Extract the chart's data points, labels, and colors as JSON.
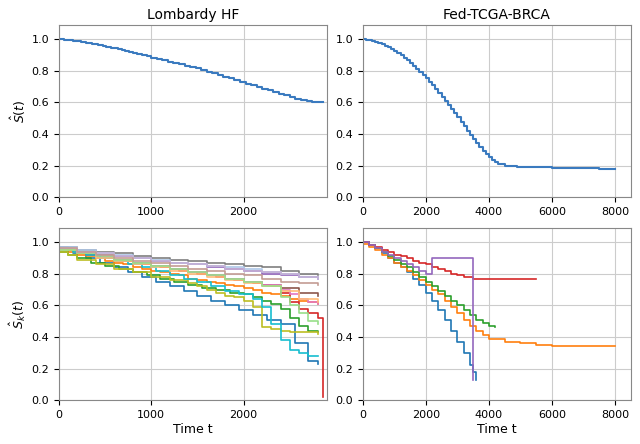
{
  "title_left": "Lombardy HF",
  "title_right": "Fed-TCGA-BRCA",
  "xlabel": "Time t",
  "ylabel_top": "$\\hat{S}(t)$",
  "ylabel_bottom": "$\\hat{S}_k(t)$",
  "background_color": "#ffffff",
  "grid_color": "#cccccc",
  "main_color": "#3a7abf",
  "hf_global": {
    "t": [
      0,
      30,
      60,
      90,
      120,
      150,
      180,
      210,
      240,
      270,
      300,
      330,
      360,
      390,
      420,
      450,
      480,
      510,
      540,
      570,
      600,
      640,
      680,
      720,
      760,
      800,
      850,
      900,
      950,
      1000,
      1060,
      1120,
      1180,
      1240,
      1300,
      1360,
      1420,
      1480,
      1540,
      1600,
      1660,
      1720,
      1780,
      1840,
      1900,
      1960,
      2020,
      2080,
      2140,
      2200,
      2260,
      2320,
      2380,
      2440,
      2500,
      2560,
      2620,
      2680,
      2740,
      2800,
      2860
    ],
    "s": [
      1.0,
      0.998,
      0.996,
      0.994,
      0.992,
      0.99,
      0.987,
      0.985,
      0.982,
      0.979,
      0.976,
      0.973,
      0.97,
      0.967,
      0.964,
      0.961,
      0.957,
      0.953,
      0.949,
      0.945,
      0.941,
      0.936,
      0.93,
      0.924,
      0.918,
      0.912,
      0.905,
      0.898,
      0.891,
      0.883,
      0.875,
      0.867,
      0.858,
      0.85,
      0.841,
      0.832,
      0.823,
      0.814,
      0.804,
      0.794,
      0.784,
      0.774,
      0.763,
      0.752,
      0.741,
      0.73,
      0.719,
      0.708,
      0.697,
      0.686,
      0.675,
      0.664,
      0.654,
      0.644,
      0.634,
      0.624,
      0.616,
      0.609,
      0.604,
      0.601,
      0.6
    ]
  },
  "brca_global": {
    "t": [
      0,
      100,
      200,
      300,
      400,
      500,
      600,
      700,
      800,
      900,
      1000,
      1100,
      1200,
      1300,
      1400,
      1500,
      1600,
      1700,
      1800,
      1900,
      2000,
      2100,
      2200,
      2300,
      2400,
      2500,
      2600,
      2700,
      2800,
      2900,
      3000,
      3100,
      3200,
      3300,
      3400,
      3500,
      3600,
      3700,
      3800,
      3900,
      4000,
      4100,
      4200,
      4300,
      4500,
      4700,
      4900,
      5200,
      5500,
      6000,
      6500,
      7000,
      7500,
      8000
    ],
    "s": [
      1.0,
      0.997,
      0.993,
      0.988,
      0.982,
      0.975,
      0.967,
      0.958,
      0.948,
      0.937,
      0.925,
      0.912,
      0.898,
      0.882,
      0.866,
      0.849,
      0.831,
      0.813,
      0.793,
      0.773,
      0.752,
      0.73,
      0.707,
      0.684,
      0.66,
      0.635,
      0.61,
      0.584,
      0.558,
      0.531,
      0.504,
      0.476,
      0.449,
      0.421,
      0.394,
      0.368,
      0.342,
      0.318,
      0.295,
      0.274,
      0.255,
      0.238,
      0.223,
      0.21,
      0.2,
      0.195,
      0.192,
      0.19,
      0.188,
      0.185,
      0.183,
      0.182,
      0.181,
      0.18
    ]
  },
  "hf_clients": [
    {
      "color": "#1f77b4",
      "t": [
        0,
        150,
        300,
        450,
        600,
        750,
        900,
        1050,
        1200,
        1350,
        1500,
        1650,
        1800,
        1950,
        2100,
        2250,
        2400,
        2550,
        2700,
        2800
      ],
      "s": [
        0.96,
        0.93,
        0.9,
        0.87,
        0.84,
        0.81,
        0.78,
        0.75,
        0.72,
        0.69,
        0.66,
        0.63,
        0.6,
        0.57,
        0.54,
        0.51,
        0.48,
        0.36,
        0.25,
        0.23
      ]
    },
    {
      "color": "#ff7f0e",
      "t": [
        0,
        100,
        200,
        300,
        400,
        500,
        600,
        700,
        800,
        900,
        1000,
        1100,
        1200,
        1300,
        1400,
        1500,
        1600,
        1700,
        1800,
        1900,
        2000,
        2100,
        2200,
        2300,
        2400,
        2500,
        2600,
        2700,
        2800
      ],
      "s": [
        0.96,
        0.94,
        0.92,
        0.91,
        0.9,
        0.88,
        0.87,
        0.86,
        0.84,
        0.83,
        0.82,
        0.81,
        0.8,
        0.79,
        0.77,
        0.76,
        0.75,
        0.74,
        0.73,
        0.72,
        0.71,
        0.7,
        0.68,
        0.67,
        0.66,
        0.64,
        0.63,
        0.62,
        0.61
      ]
    },
    {
      "color": "#2ca02c",
      "t": [
        0,
        100,
        200,
        350,
        500,
        650,
        800,
        950,
        1100,
        1250,
        1400,
        1550,
        1700,
        1850,
        2000,
        2100,
        2200,
        2300,
        2400,
        2500,
        2600,
        2700,
        2800
      ],
      "s": [
        0.94,
        0.92,
        0.9,
        0.87,
        0.85,
        0.83,
        0.81,
        0.79,
        0.77,
        0.75,
        0.73,
        0.71,
        0.7,
        0.68,
        0.67,
        0.65,
        0.63,
        0.61,
        0.58,
        0.52,
        0.47,
        0.44,
        0.43
      ]
    },
    {
      "color": "#d62728",
      "t": [
        0,
        100,
        200,
        300,
        400,
        500,
        600,
        700,
        800,
        900,
        1000,
        1100,
        1200,
        1300,
        1400,
        1500,
        1600,
        1700,
        1800,
        1900,
        2000,
        2100,
        2200,
        2300,
        2400,
        2500,
        2600,
        2700,
        2800,
        2860
      ],
      "s": [
        0.97,
        0.95,
        0.93,
        0.92,
        0.91,
        0.9,
        0.89,
        0.88,
        0.87,
        0.86,
        0.85,
        0.84,
        0.83,
        0.82,
        0.81,
        0.8,
        0.79,
        0.78,
        0.77,
        0.76,
        0.75,
        0.74,
        0.73,
        0.72,
        0.68,
        0.62,
        0.58,
        0.55,
        0.52,
        0.02
      ]
    },
    {
      "color": "#9467bd",
      "t": [
        0,
        200,
        400,
        600,
        800,
        1000,
        1200,
        1400,
        1600,
        1800,
        2000,
        2200,
        2400,
        2600,
        2800
      ],
      "s": [
        0.96,
        0.94,
        0.92,
        0.91,
        0.9,
        0.88,
        0.87,
        0.86,
        0.84,
        0.83,
        0.82,
        0.8,
        0.79,
        0.78,
        0.77
      ]
    },
    {
      "color": "#8c564b",
      "t": [
        0,
        200,
        400,
        600,
        800,
        1000,
        1200,
        1400,
        1600,
        1800,
        2000,
        2200,
        2400,
        2600,
        2800
      ],
      "s": [
        0.95,
        0.93,
        0.91,
        0.89,
        0.87,
        0.85,
        0.83,
        0.81,
        0.79,
        0.77,
        0.75,
        0.73,
        0.71,
        0.68,
        0.66
      ]
    },
    {
      "color": "#e377c2",
      "t": [
        0,
        200,
        400,
        600,
        800,
        1000,
        1200,
        1400,
        1600,
        1800,
        2000,
        2200,
        2400,
        2500,
        2600,
        2700,
        2800
      ],
      "s": [
        0.96,
        0.93,
        0.91,
        0.89,
        0.87,
        0.85,
        0.83,
        0.81,
        0.79,
        0.77,
        0.75,
        0.73,
        0.7,
        0.67,
        0.64,
        0.62,
        0.61
      ]
    },
    {
      "color": "#7f7f7f",
      "t": [
        0,
        200,
        400,
        600,
        800,
        1000,
        1200,
        1400,
        1600,
        1800,
        2000,
        2200,
        2400,
        2600,
        2800
      ],
      "s": [
        0.97,
        0.95,
        0.94,
        0.93,
        0.91,
        0.9,
        0.89,
        0.88,
        0.87,
        0.86,
        0.85,
        0.84,
        0.82,
        0.8,
        0.79
      ]
    },
    {
      "color": "#bcbd22",
      "t": [
        0,
        100,
        200,
        400,
        600,
        800,
        1000,
        1200,
        1400,
        1500,
        1600,
        1700,
        1800,
        1900,
        2000,
        2100,
        2200,
        2300,
        2400,
        2500,
        2600,
        2700,
        2800
      ],
      "s": [
        0.94,
        0.92,
        0.89,
        0.86,
        0.83,
        0.81,
        0.78,
        0.76,
        0.74,
        0.72,
        0.7,
        0.68,
        0.66,
        0.65,
        0.63,
        0.59,
        0.46,
        0.45,
        0.44,
        0.43,
        0.43,
        0.43,
        0.42
      ]
    },
    {
      "color": "#17becf",
      "t": [
        0,
        150,
        300,
        450,
        600,
        750,
        900,
        1050,
        1200,
        1350,
        1500,
        1650,
        1800,
        1950,
        2100,
        2200,
        2300,
        2400,
        2500,
        2600,
        2700,
        2800
      ],
      "s": [
        0.96,
        0.94,
        0.92,
        0.9,
        0.88,
        0.86,
        0.84,
        0.82,
        0.79,
        0.77,
        0.75,
        0.72,
        0.69,
        0.67,
        0.64,
        0.59,
        0.48,
        0.38,
        0.32,
        0.3,
        0.28,
        0.28
      ]
    },
    {
      "color": "#aec7e8",
      "t": [
        0,
        200,
        400,
        600,
        800,
        1000,
        1200,
        1400,
        1600,
        1800,
        2000,
        2200,
        2400,
        2600,
        2800
      ],
      "s": [
        0.97,
        0.95,
        0.93,
        0.92,
        0.9,
        0.89,
        0.87,
        0.86,
        0.85,
        0.84,
        0.83,
        0.81,
        0.8,
        0.78,
        0.77
      ]
    },
    {
      "color": "#ffbb78",
      "t": [
        0,
        200,
        400,
        600,
        800,
        1000,
        1200,
        1400,
        1600,
        1800,
        2000,
        2200,
        2400,
        2600,
        2800
      ],
      "s": [
        0.95,
        0.93,
        0.9,
        0.88,
        0.86,
        0.84,
        0.82,
        0.8,
        0.78,
        0.76,
        0.74,
        0.72,
        0.69,
        0.64,
        0.62
      ]
    },
    {
      "color": "#98df8a",
      "t": [
        0,
        200,
        400,
        600,
        800,
        1000,
        1200,
        1400,
        1600,
        1800,
        2000,
        2200,
        2400,
        2500,
        2600,
        2700,
        2800
      ],
      "s": [
        0.95,
        0.93,
        0.91,
        0.89,
        0.87,
        0.85,
        0.83,
        0.81,
        0.79,
        0.77,
        0.75,
        0.72,
        0.65,
        0.6,
        0.55,
        0.5,
        0.48
      ]
    },
    {
      "color": "#c5b0d5",
      "t": [
        0,
        200,
        400,
        600,
        800,
        1000,
        1200,
        1400,
        1600,
        1800,
        2000,
        2200,
        2400,
        2600,
        2800
      ],
      "s": [
        0.96,
        0.94,
        0.93,
        0.91,
        0.9,
        0.88,
        0.87,
        0.86,
        0.85,
        0.83,
        0.82,
        0.81,
        0.8,
        0.78,
        0.77
      ]
    },
    {
      "color": "#c49c94",
      "t": [
        0,
        200,
        400,
        600,
        800,
        1000,
        1200,
        1400,
        1600,
        1800,
        2000,
        2200,
        2400,
        2600,
        2800
      ],
      "s": [
        0.96,
        0.94,
        0.92,
        0.9,
        0.88,
        0.87,
        0.85,
        0.83,
        0.82,
        0.8,
        0.79,
        0.77,
        0.75,
        0.74,
        0.73
      ]
    }
  ],
  "brca_clients": [
    {
      "color": "#1f77b4",
      "t": [
        0,
        200,
        400,
        600,
        800,
        1000,
        1200,
        1400,
        1600,
        1800,
        2000,
        2200,
        2400,
        2600,
        2800,
        3000,
        3200,
        3400,
        3500,
        3600
      ],
      "s": [
        1.0,
        0.98,
        0.96,
        0.93,
        0.9,
        0.87,
        0.84,
        0.81,
        0.77,
        0.73,
        0.68,
        0.63,
        0.57,
        0.51,
        0.44,
        0.37,
        0.3,
        0.22,
        0.18,
        0.13
      ]
    },
    {
      "color": "#ff7f0e",
      "t": [
        0,
        200,
        400,
        600,
        800,
        1000,
        1200,
        1400,
        1600,
        1800,
        2000,
        2200,
        2400,
        2600,
        2800,
        3000,
        3200,
        3400,
        3600,
        3800,
        4000,
        4500,
        5000,
        5500,
        6000,
        6500,
        7000,
        7500,
        8000
      ],
      "s": [
        0.99,
        0.97,
        0.95,
        0.92,
        0.9,
        0.87,
        0.84,
        0.82,
        0.79,
        0.76,
        0.73,
        0.7,
        0.67,
        0.63,
        0.59,
        0.55,
        0.51,
        0.47,
        0.44,
        0.41,
        0.39,
        0.37,
        0.36,
        0.35,
        0.34,
        0.34,
        0.34,
        0.34,
        0.34
      ]
    },
    {
      "color": "#2ca02c",
      "t": [
        0,
        200,
        400,
        600,
        800,
        1000,
        1200,
        1400,
        1600,
        1800,
        2000,
        2200,
        2400,
        2600,
        2800,
        3000,
        3200,
        3400,
        3600,
        3800,
        4000,
        4200
      ],
      "s": [
        1.0,
        0.98,
        0.96,
        0.94,
        0.91,
        0.89,
        0.86,
        0.84,
        0.81,
        0.78,
        0.75,
        0.72,
        0.69,
        0.66,
        0.63,
        0.6,
        0.57,
        0.54,
        0.51,
        0.49,
        0.47,
        0.46
      ]
    },
    {
      "color": "#d62728",
      "t": [
        0,
        200,
        400,
        600,
        800,
        1000,
        1200,
        1400,
        1600,
        1800,
        2000,
        2200,
        2400,
        2600,
        2800,
        3000,
        3200,
        3500,
        4000,
        4500,
        5000,
        5500
      ],
      "s": [
        1.0,
        0.98,
        0.97,
        0.95,
        0.94,
        0.92,
        0.91,
        0.9,
        0.88,
        0.87,
        0.86,
        0.84,
        0.83,
        0.82,
        0.8,
        0.79,
        0.78,
        0.77,
        0.77,
        0.77,
        0.77,
        0.77
      ]
    },
    {
      "color": "#9467bd",
      "t": [
        0,
        200,
        400,
        600,
        800,
        1000,
        1200,
        1400,
        1600,
        1800,
        2000,
        2200,
        2400,
        2600,
        2800,
        3000,
        3200,
        3400,
        3500
      ],
      "s": [
        1.0,
        0.98,
        0.96,
        0.94,
        0.92,
        0.9,
        0.88,
        0.86,
        0.84,
        0.82,
        0.8,
        0.9,
        0.9,
        0.9,
        0.9,
        0.9,
        0.9,
        0.9,
        0.13
      ]
    }
  ]
}
